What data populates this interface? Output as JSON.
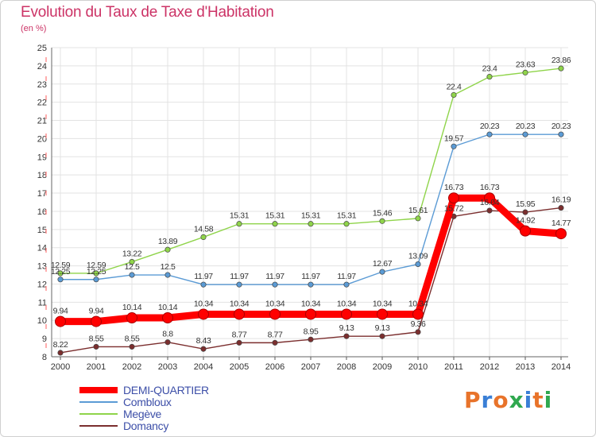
{
  "title": "Evolution du Taux de Taxe d'Habitation",
  "subtitle": "(en %)",
  "logo": {
    "text": "Proxiti",
    "colors": [
      "#e8732a",
      "#3a7fd6",
      "#e8732a",
      "#2fa84f",
      "#3a7fd6",
      "#e8732a",
      "#2fa84f"
    ]
  },
  "chart_data": {
    "type": "line",
    "x": [
      "2000",
      "2001",
      "2002",
      "2003",
      "2004",
      "2005",
      "2006",
      "2007",
      "2008",
      "2009",
      "2010",
      "2011",
      "2012",
      "2013",
      "2014"
    ],
    "ylim": [
      8,
      25
    ],
    "yticks": [
      8,
      9,
      10,
      11,
      12,
      13,
      14,
      15,
      16,
      17,
      18,
      19,
      20,
      21,
      22,
      23,
      24,
      25
    ],
    "grid": true,
    "legend_position": "bottom-left",
    "series": [
      {
        "name": "DEMI-QUARTIER",
        "color": "#ff0000",
        "values": [
          9.94,
          9.94,
          10.14,
          10.14,
          10.34,
          10.34,
          10.34,
          10.34,
          10.34,
          10.34,
          10.34,
          16.73,
          16.73,
          14.92,
          14.77
        ]
      },
      {
        "name": "Combloux",
        "color": "#5b9bd5",
        "values": [
          12.25,
          12.25,
          12.5,
          12.5,
          11.97,
          11.97,
          11.97,
          11.97,
          11.97,
          12.67,
          13.09,
          19.57,
          20.23,
          20.23,
          20.23
        ]
      },
      {
        "name": "Megève",
        "color": "#8fd44a",
        "values": [
          12.59,
          12.59,
          13.22,
          13.89,
          14.58,
          15.31,
          15.31,
          15.31,
          15.31,
          15.46,
          15.61,
          22.4,
          23.4,
          23.63,
          23.86
        ]
      },
      {
        "name": "Domancy",
        "color": "#7b2e2e",
        "values": [
          8.22,
          8.55,
          8.55,
          8.8,
          8.43,
          8.77,
          8.77,
          8.95,
          9.13,
          9.13,
          9.36,
          15.72,
          16.04,
          15.95,
          16.19
        ]
      }
    ]
  }
}
